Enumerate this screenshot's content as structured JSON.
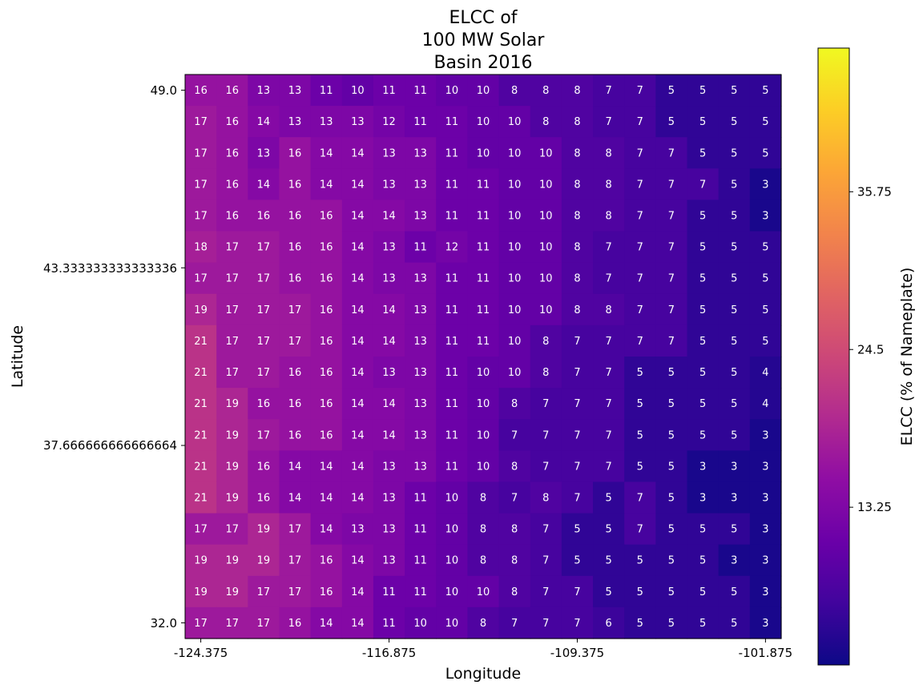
{
  "chart_data": {
    "type": "heatmap",
    "title_lines": [
      "ELCC of",
      "100 MW Solar",
      "Basin 2016"
    ],
    "xlabel": "Longitude",
    "ylabel": "Latitude",
    "colorbar_label": "ELCC (% of Nameplate)",
    "x_ticks": [
      "-124.375",
      "-116.875",
      "-109.375",
      "-101.875"
    ],
    "y_ticks": [
      "49.0",
      "43.333333333333336",
      "37.666666666666664",
      "32.0"
    ],
    "colorbar_ticks": [
      "13.25",
      "24.5",
      "35.75"
    ],
    "colorbar_tick_values": [
      13.25,
      24.5,
      35.75
    ],
    "vmin": 2,
    "vmax": 46,
    "colormap": "plasma",
    "grid": false,
    "rows_top_to_bottom": [
      [
        16,
        16,
        13,
        13,
        11,
        10,
        11,
        11,
        10,
        10,
        8,
        8,
        8,
        7,
        7,
        5,
        5,
        5,
        5
      ],
      [
        17,
        16,
        14,
        13,
        13,
        13,
        12,
        11,
        11,
        10,
        10,
        8,
        8,
        7,
        7,
        5,
        5,
        5,
        5
      ],
      [
        17,
        16,
        13,
        16,
        14,
        14,
        13,
        13,
        11,
        10,
        10,
        10,
        8,
        8,
        7,
        7,
        5,
        5,
        5
      ],
      [
        17,
        16,
        14,
        16,
        14,
        14,
        13,
        13,
        11,
        11,
        10,
        10,
        8,
        8,
        7,
        7,
        7,
        5,
        3
      ],
      [
        17,
        16,
        16,
        16,
        16,
        14,
        14,
        13,
        11,
        11,
        10,
        10,
        8,
        8,
        7,
        7,
        5,
        5,
        3
      ],
      [
        18,
        17,
        17,
        16,
        16,
        14,
        13,
        11,
        12,
        11,
        10,
        10,
        8,
        7,
        7,
        7,
        5,
        5,
        5
      ],
      [
        17,
        17,
        17,
        16,
        16,
        14,
        13,
        13,
        11,
        11,
        10,
        10,
        8,
        7,
        7,
        7,
        5,
        5,
        5
      ],
      [
        19,
        17,
        17,
        17,
        16,
        14,
        14,
        13,
        11,
        11,
        10,
        10,
        8,
        8,
        7,
        7,
        5,
        5,
        5
      ],
      [
        21,
        17,
        17,
        17,
        16,
        14,
        14,
        13,
        11,
        11,
        10,
        8,
        7,
        7,
        7,
        7,
        5,
        5,
        5
      ],
      [
        21,
        17,
        17,
        16,
        16,
        14,
        13,
        13,
        11,
        10,
        10,
        8,
        7,
        7,
        5,
        5,
        5,
        5,
        4
      ],
      [
        21,
        19,
        16,
        16,
        16,
        14,
        14,
        13,
        11,
        10,
        8,
        7,
        7,
        7,
        5,
        5,
        5,
        5,
        4
      ],
      [
        21,
        19,
        17,
        16,
        16,
        14,
        14,
        13,
        11,
        10,
        7,
        7,
        7,
        7,
        5,
        5,
        5,
        5,
        3
      ],
      [
        21,
        19,
        16,
        14,
        14,
        14,
        13,
        13,
        11,
        10,
        8,
        7,
        7,
        7,
        5,
        5,
        3,
        3,
        3
      ],
      [
        21,
        19,
        16,
        14,
        14,
        14,
        13,
        11,
        10,
        8,
        7,
        8,
        7,
        5,
        7,
        5,
        3,
        3,
        3
      ],
      [
        17,
        17,
        19,
        17,
        14,
        13,
        13,
        11,
        10,
        8,
        8,
        7,
        5,
        5,
        7,
        5,
        5,
        5,
        3
      ],
      [
        19,
        19,
        19,
        17,
        16,
        14,
        13,
        11,
        10,
        8,
        8,
        7,
        5,
        5,
        5,
        5,
        5,
        3,
        3
      ],
      [
        19,
        19,
        17,
        17,
        16,
        14,
        11,
        11,
        10,
        10,
        8,
        7,
        7,
        5,
        5,
        5,
        5,
        5,
        3
      ],
      [
        17,
        17,
        17,
        16,
        14,
        14,
        11,
        10,
        10,
        8,
        7,
        7,
        7,
        6,
        5,
        5,
        5,
        5,
        3
      ]
    ]
  }
}
